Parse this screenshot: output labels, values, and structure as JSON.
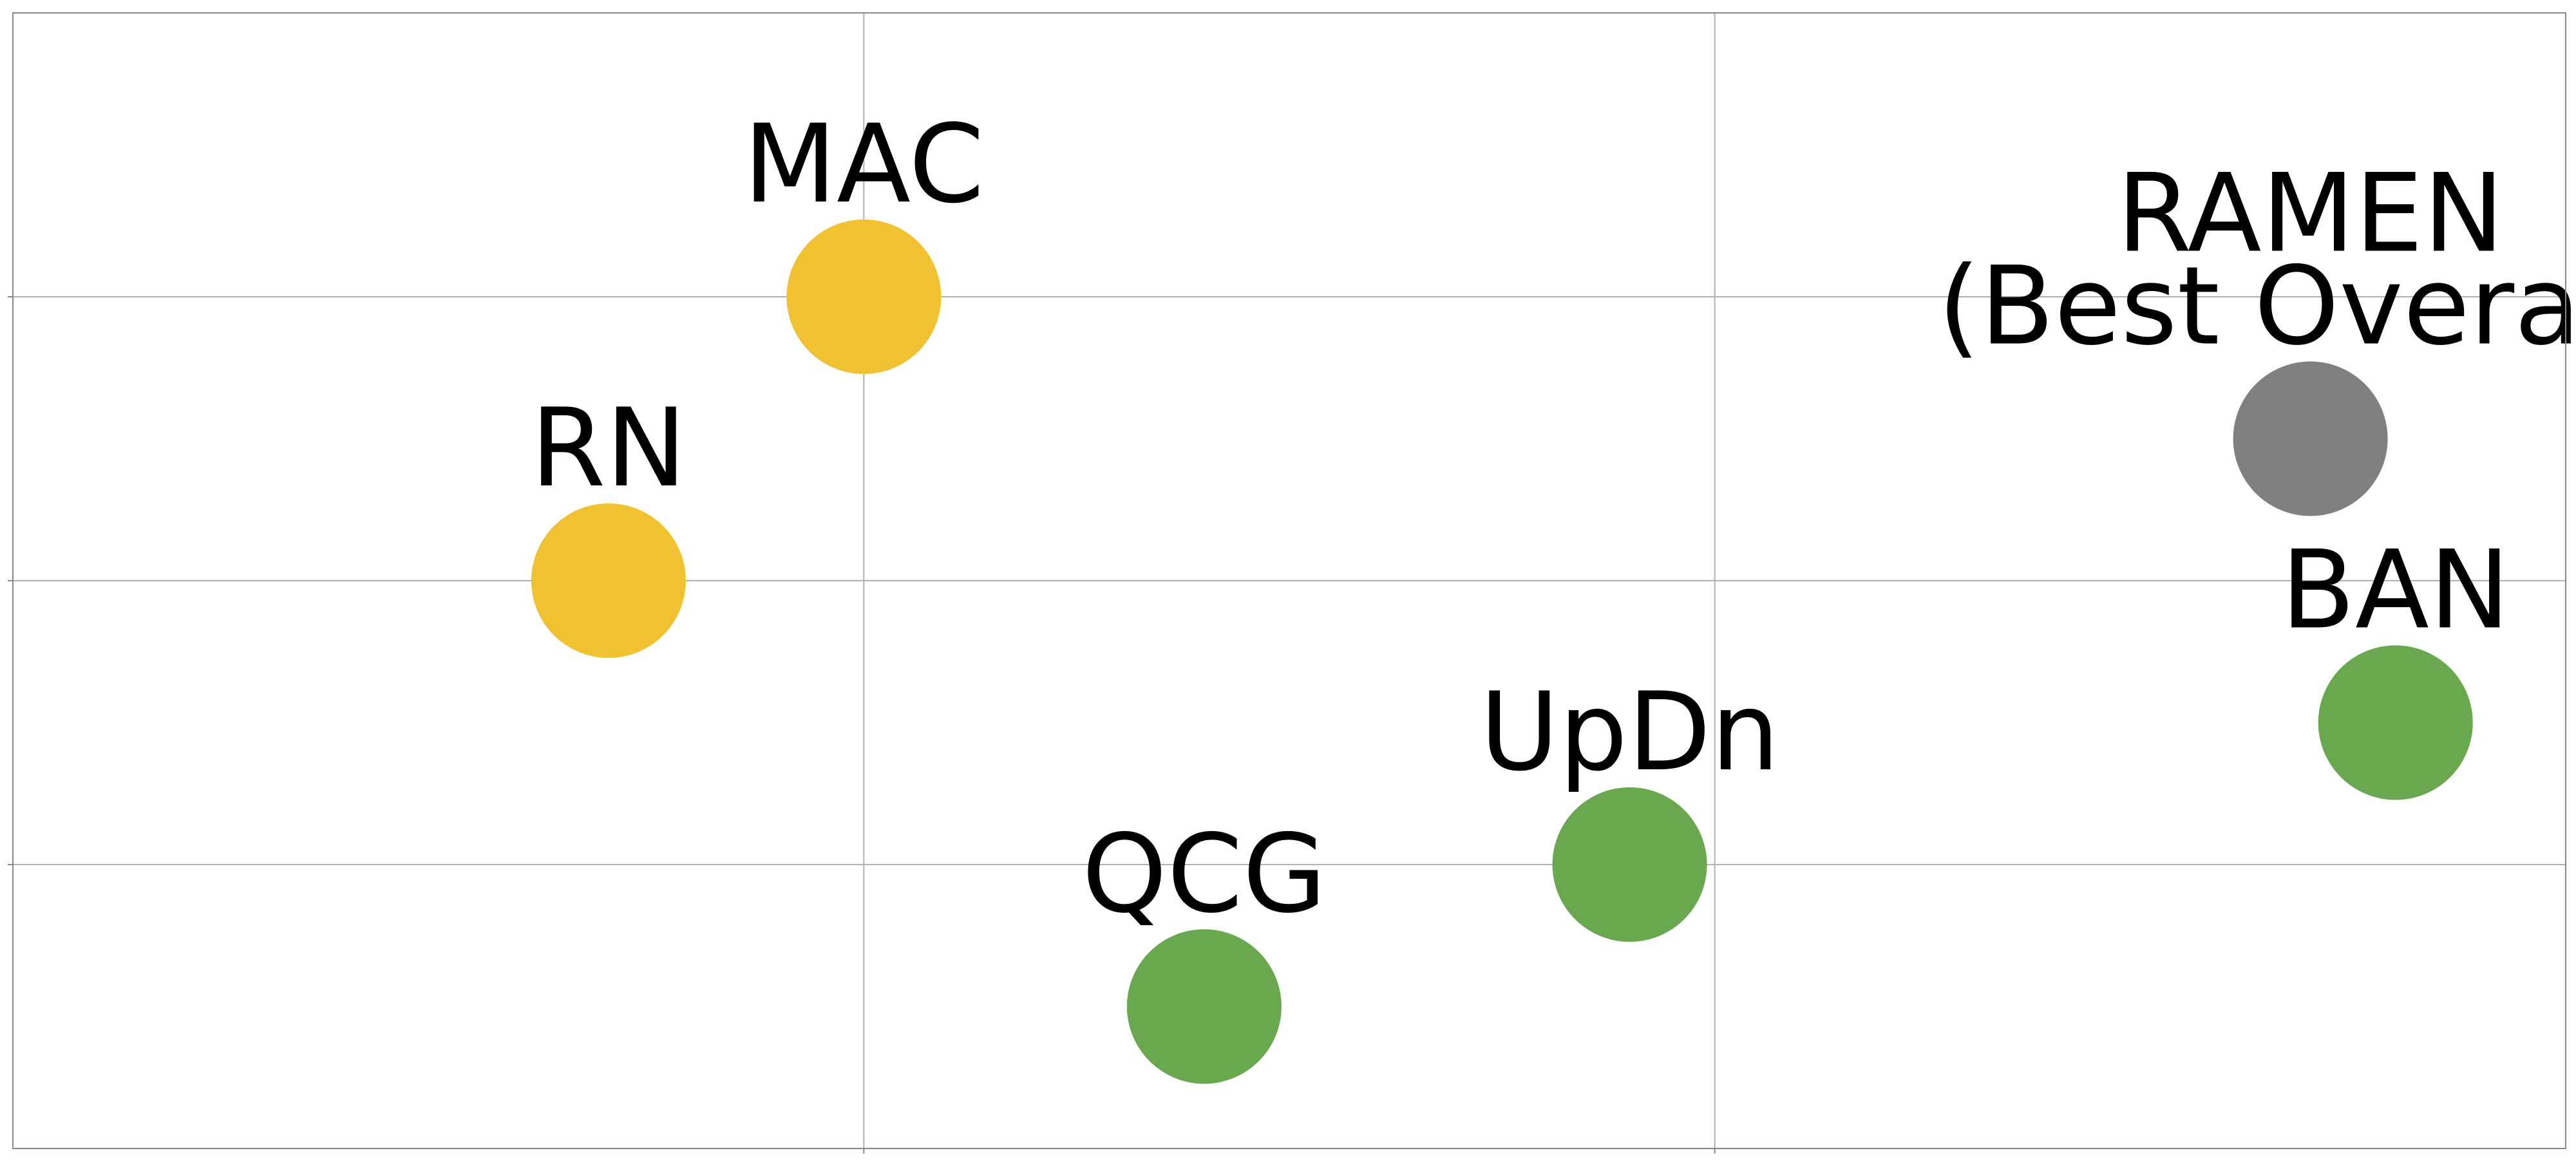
{
  "chart_data": {
    "type": "scatter",
    "title": "",
    "xlabel": "",
    "ylabel": "",
    "xlim": [
      0,
      3
    ],
    "ylim": [
      0,
      4
    ],
    "grid": true,
    "legend": "none",
    "colors": {
      "yellow": "#F0C232",
      "green": "#6AA84F",
      "gray": "#808080",
      "grid": "#b0b0b0",
      "frame": "#888888",
      "label": "#000000"
    },
    "points": [
      {
        "label": "MAC",
        "x": 1.0,
        "y": 3.0,
        "color": "yellow"
      },
      {
        "label": "RN",
        "x": 0.7,
        "y": 2.0,
        "color": "yellow"
      },
      {
        "label": "QCG",
        "x": 1.4,
        "y": 0.5,
        "color": "green"
      },
      {
        "label": "UpDn",
        "x": 1.9,
        "y": 1.0,
        "color": "green"
      },
      {
        "label": "BAN",
        "x": 2.8,
        "y": 1.5,
        "color": "green"
      },
      {
        "label": "RAMEN\n(Best Overall)",
        "x": 2.7,
        "y": 2.5,
        "color": "gray"
      }
    ]
  }
}
